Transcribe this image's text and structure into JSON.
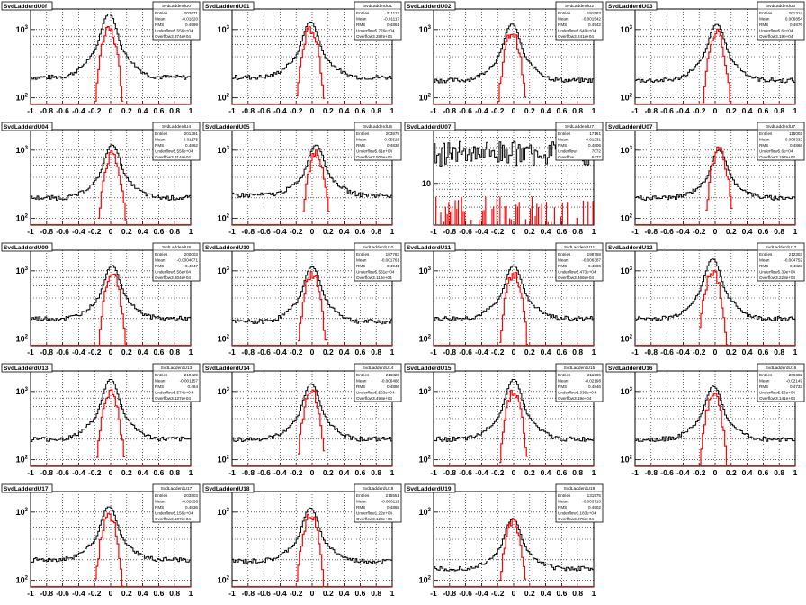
{
  "x_ticks": [
    "-1",
    "-0.8",
    "-0.6",
    "-0.4",
    "-0.2",
    "0",
    "0.2",
    "0.4",
    "0.6",
    "0.8",
    "1"
  ],
  "stats_labels": {
    "entries": "Entries",
    "mean": "Mean",
    "rms": "RMS",
    "underflow": "Underflow",
    "overflow": "Overflow"
  },
  "colors": {
    "hist_all": "#000000",
    "hist_selected": "#ff0000",
    "grid": "#000000",
    "background": "#ffffff"
  },
  "chart_data": [
    {
      "type": "area",
      "title": "SvdLadderdU0f",
      "stats_title": "SvdLadderdU0",
      "log_y": true,
      "ylim": [
        80,
        2000
      ],
      "y_ticks": [
        "10^2",
        "10^3"
      ],
      "xlim": [
        -1,
        1
      ],
      "peak": {
        "x": -0.02,
        "all": 1700,
        "selected": 1000,
        "baseline": 200
      },
      "stats": {
        "entries": "202671",
        "mean": "-0.01820",
        "rms": "0.4999",
        "underflow": "Underflow5.556e+04",
        "overflow": "Overflow3.374e+04"
      }
    },
    {
      "type": "area",
      "title": "SvdLadderdU01",
      "stats_title": "SvdLadderdU1",
      "log_y": true,
      "ylim": [
        80,
        2000
      ],
      "y_ticks": [
        "10^2",
        "10^3"
      ],
      "xlim": [
        -1,
        1
      ],
      "peak": {
        "x": -0.02,
        "all": 1300,
        "selected": 1000,
        "baseline": 200
      },
      "stats": {
        "entries": "211117",
        "mean": "-0.01117",
        "rms": "0.4861",
        "underflow": "Underflow5.776e+04",
        "overflow": "Overflow3.287e+04"
      }
    },
    {
      "type": "area",
      "title": "SvdLadderdU02",
      "stats_title": "SvdLadderdU2",
      "log_y": true,
      "ylim": [
        80,
        2000
      ],
      "y_ticks": [
        "10^2",
        "10^3"
      ],
      "xlim": [
        -1,
        1
      ],
      "peak": {
        "x": -0.02,
        "all": 1200,
        "selected": 900,
        "baseline": 180
      },
      "stats": {
        "entries": "191563",
        "mean": "-0.001542",
        "rms": "0.4942",
        "underflow": "Underflow5.649e+04",
        "overflow": "Overflow3.241e+04"
      }
    },
    {
      "type": "area",
      "title": "SvdLadderdU03",
      "stats_title": "SvdLadderdU3",
      "log_y": true,
      "ylim": [
        80,
        2000
      ],
      "y_ticks": [
        "10^2",
        "10^3"
      ],
      "xlim": [
        -1,
        1
      ],
      "peak": {
        "x": 0.02,
        "all": 1200,
        "selected": 900,
        "baseline": 180
      },
      "stats": {
        "entries": "201314",
        "mean": "0.006854",
        "rms": "0.4876",
        "underflow": "Underflow5.6e+04",
        "overflow": "Overflow3.19e+04"
      }
    },
    {
      "type": "area",
      "title": "SvdLadderdU04",
      "stats_title": "SvdLadderdU4",
      "log_y": true,
      "ylim": [
        80,
        2000
      ],
      "y_ticks": [
        "10^2",
        "10^3"
      ],
      "xlim": [
        -1,
        1
      ],
      "peak": {
        "x": 0.02,
        "all": 1200,
        "selected": 900,
        "baseline": 200
      },
      "stats": {
        "entries": "201391",
        "mean": "0.01175",
        "rms": "0.4862",
        "underflow": "Underflow5.556e+04",
        "overflow": "Overflow3.314e+04"
      }
    },
    {
      "type": "area",
      "title": "SvdLadderdU05",
      "stats_title": "SvdLadderdU5",
      "log_y": true,
      "ylim": [
        80,
        2000
      ],
      "y_ticks": [
        "10^3",
        "10^2"
      ],
      "xlim": [
        -1,
        1
      ],
      "peak": {
        "x": 0.05,
        "all": 1200,
        "selected": 900,
        "baseline": 220
      },
      "stats": {
        "entries": "203879",
        "mean": "0.05528",
        "rms": "0.4836",
        "underflow": "Underflow5.61e+04",
        "overflow": "Overflow3.506e+04"
      }
    },
    {
      "type": "bar",
      "title": "SvdLadderdU07",
      "stats_title": "SvdLadderdU7",
      "log_y": true,
      "ylim": [
        2,
        80
      ],
      "y_ticks": [
        "10"
      ],
      "xlim": [
        -1,
        1
      ],
      "peak": {
        "x": 0,
        "all": 35,
        "selected": 4,
        "baseline": 35
      },
      "stats": {
        "entries": "17161",
        "mean": "0.01231",
        "rms": "0.4806",
        "underflow": "7072",
        "overflow": "6477"
      }
    },
    {
      "type": "area",
      "title": "SvdLadderdU07",
      "stats_title": "SvdLadderdU7",
      "log_y": true,
      "ylim": [
        80,
        2000
      ],
      "y_ticks": [
        "10^3",
        "10^2"
      ],
      "xlim": [
        -1,
        1
      ],
      "peak": {
        "x": 0.05,
        "all": 1000,
        "selected": 1000,
        "baseline": 200
      },
      "stats": {
        "entries": "115002",
        "mean": "0.008332",
        "rms": "0.4866",
        "underflow": "Underflow5.6e+04",
        "overflow": "Overflow3.197e+04"
      }
    },
    {
      "type": "area",
      "title": "SvdLadderdU09",
      "stats_title": "SvdLadderdU9",
      "log_y": true,
      "ylim": [
        80,
        2000
      ],
      "y_ticks": [
        "10^3",
        "10^2"
      ],
      "xlim": [
        -1,
        1
      ],
      "peak": {
        "x": 0.02,
        "all": 1200,
        "selected": 900,
        "baseline": 200
      },
      "stats": {
        "entries": "200003",
        "mean": "-0.0004071",
        "rms": "0.4847",
        "underflow": "Underflow5.56e+04",
        "overflow": "Overflow3.304e+04"
      }
    },
    {
      "type": "area",
      "title": "SvdLadderdU10",
      "stats_title": "SvdLadderdU10",
      "log_y": true,
      "ylim": [
        80,
        2000
      ],
      "y_ticks": [
        "10^3",
        "10^2"
      ],
      "xlim": [
        -1,
        1
      ],
      "peak": {
        "x": 0,
        "all": 1150,
        "selected": 900,
        "baseline": 180
      },
      "stats": {
        "entries": "187783",
        "mean": "-0.001761",
        "rms": "0.4941",
        "underflow": "Underflow5.531e+04",
        "overflow": "Overflow3.112e+04"
      }
    },
    {
      "type": "area",
      "title": "SvdLadderdU11",
      "stats_title": "SvdLadderdU11",
      "log_y": true,
      "ylim": [
        80,
        2000
      ],
      "y_ticks": [
        "10^3",
        "10^2"
      ],
      "xlim": [
        -1,
        1
      ],
      "peak": {
        "x": 0,
        "all": 1200,
        "selected": 900,
        "baseline": 200
      },
      "stats": {
        "entries": "198758",
        "mean": "-0.006387",
        "rms": "0.4886",
        "underflow": "Underflow5.473e+04",
        "overflow": "Overflow3.466e+04"
      }
    },
    {
      "type": "area",
      "title": "SvdLadderdU12",
      "stats_title": "SvdLadderdU12",
      "log_y": true,
      "ylim": [
        80,
        2000
      ],
      "y_ticks": [
        "10^3",
        "10^2"
      ],
      "xlim": [
        -1,
        1
      ],
      "peak": {
        "x": -0.03,
        "all": 1500,
        "selected": 1000,
        "baseline": 200
      },
      "stats": {
        "entries": "212303",
        "mean": "-0.004752",
        "rms": "0.4823",
        "underflow": "Underflow5.39e+04",
        "overflow": "Overflow3.228e+04"
      }
    },
    {
      "type": "area",
      "title": "SvdLadderdU13",
      "stats_title": "SvdLadderdU13",
      "log_y": true,
      "ylim": [
        80,
        2000
      ],
      "y_ticks": [
        "10^3",
        "10^2"
      ],
      "xlim": [
        -1,
        1
      ],
      "peak": {
        "x": 0,
        "all": 1500,
        "selected": 1000,
        "baseline": 200
      },
      "stats": {
        "entries": "210429",
        "mean": "-0.001157",
        "rms": "0.484",
        "underflow": "Underflow5.574e+04",
        "overflow": "Overflow3.127e+04"
      }
    },
    {
      "type": "area",
      "title": "SvdLadderdU14",
      "stats_title": "SvdLadderdU14",
      "log_y": true,
      "ylim": [
        80,
        2000
      ],
      "y_ticks": [
        "10^3",
        "10^2"
      ],
      "xlim": [
        -1,
        1
      ],
      "peak": {
        "x": -0.01,
        "all": 1300,
        "selected": 1000,
        "baseline": 200
      },
      "stats": {
        "entries": "216826",
        "mean": "-0.006488",
        "rms": "0.4886",
        "underflow": "Underflow5.523e+04",
        "overflow": "Overflow3.498e+04"
      }
    },
    {
      "type": "area",
      "title": "SvdLadderdU15",
      "stats_title": "SvdLadderdU15",
      "log_y": true,
      "ylim": [
        80,
        2000
      ],
      "y_ticks": [
        "10^3",
        "10^2"
      ],
      "xlim": [
        -1,
        1
      ],
      "peak": {
        "x": 0,
        "all": 1500,
        "selected": 1000,
        "baseline": 200
      },
      "stats": {
        "entries": "211006",
        "mean": "-0.02198",
        "rms": "0.4846",
        "underflow": "Underflow5.339e+04",
        "overflow": "Overflow3.19e+04"
      }
    },
    {
      "type": "area",
      "title": "SvdLadderdU16",
      "stats_title": "SvdLadderdU16",
      "log_y": true,
      "ylim": [
        80,
        2000
      ],
      "y_ticks": [
        "10^3",
        "10^2"
      ],
      "xlim": [
        -1,
        1
      ],
      "peak": {
        "x": -0.02,
        "all": 1200,
        "selected": 900,
        "baseline": 200
      },
      "stats": {
        "entries": "206382",
        "mean": "-0.02149",
        "rms": "0.4733",
        "underflow": "Underflow5.56e+04",
        "overflow": "Overflow3.141e+04"
      }
    },
    {
      "type": "area",
      "title": "SvdLadderdU17",
      "stats_title": "SvdLadderdU17",
      "log_y": true,
      "ylim": [
        80,
        2000
      ],
      "y_ticks": [
        "10^3",
        "10^2"
      ],
      "xlim": [
        -1,
        1
      ],
      "peak": {
        "x": -0.02,
        "all": 1200,
        "selected": 900,
        "baseline": 200
      },
      "stats": {
        "entries": "203803",
        "mean": "-0.02856",
        "rms": "0.4836",
        "underflow": "Underflow5.156e+04",
        "overflow": "Overflow3.107e+04"
      }
    },
    {
      "type": "area",
      "title": "SvdLadderdU18",
      "stats_title": "SvdLadderdU18",
      "log_y": true,
      "ylim": [
        80,
        2000
      ],
      "y_ticks": [
        "10^3",
        "10^2"
      ],
      "xlim": [
        -1,
        1
      ],
      "peak": {
        "x": -0.02,
        "all": 1150,
        "selected": 900,
        "baseline": 190
      },
      "stats": {
        "entries": "215551",
        "mean": "-0.006119",
        "rms": "0.4865",
        "underflow": "Underflow1.22e+04",
        "overflow": "Overflow3.123e+04"
      }
    },
    {
      "type": "area",
      "title": "SvdLadderdU19",
      "stats_title": "SvdLadderdU19",
      "log_y": true,
      "ylim": [
        80,
        2000
      ],
      "y_ticks": [
        "10^3",
        "10^2"
      ],
      "xlim": [
        -1,
        1
      ],
      "peak": {
        "x": -0.01,
        "all": 800,
        "selected": 700,
        "baseline": 150
      },
      "stats": {
        "entries": "131575",
        "mean": "-0.003713",
        "rms": "0.4902",
        "underflow": "Underflow3.183e+04",
        "overflow": "Overflow3.075e+04"
      }
    }
  ]
}
